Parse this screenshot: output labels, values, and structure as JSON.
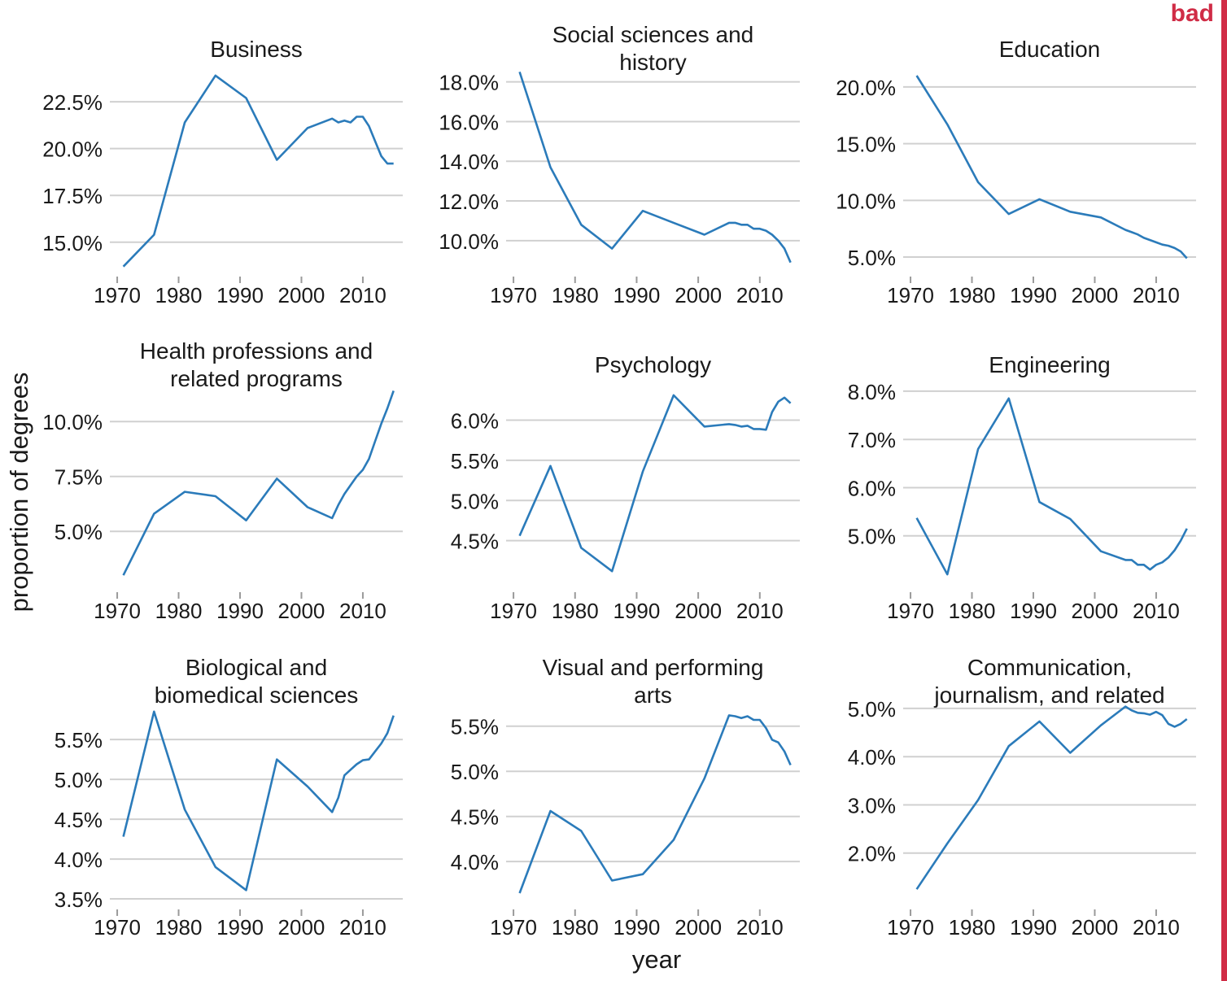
{
  "badge": {
    "text": "bad",
    "color": "#d02c46"
  },
  "xlabel": "year",
  "ylabel": "proportion of degrees",
  "line_color": "#2b7bba",
  "grid_color": "#d0d0d0",
  "chart_data": [
    {
      "type": "line",
      "title": "Business",
      "xticks": [
        1970,
        1980,
        1990,
        2000,
        2010
      ],
      "yticks": [
        "15.0%",
        "17.5%",
        "20.0%",
        "22.5%"
      ],
      "ylim": [
        13.6,
        24.2
      ],
      "series": [
        {
          "x": [
            1971,
            1976,
            1981,
            1986,
            1991,
            1996,
            2001,
            2005,
            2006,
            2007,
            2008,
            2009,
            2010,
            2011,
            2012,
            2013,
            2014,
            2015
          ],
          "y": [
            13.7,
            15.4,
            21.4,
            23.9,
            22.7,
            19.4,
            21.1,
            21.6,
            21.4,
            21.5,
            21.4,
            21.7,
            21.7,
            21.2,
            20.4,
            19.6,
            19.2,
            19.2
          ]
        }
      ]
    },
    {
      "type": "line",
      "title": "Social sciences and history",
      "xticks": [
        1970,
        1980,
        1990,
        2000,
        2010
      ],
      "yticks": [
        "10.0%",
        "12.0%",
        "14.0%",
        "16.0%",
        "18.0%"
      ],
      "ylim": [
        8.6,
        18.6
      ],
      "series": [
        {
          "x": [
            1971,
            1976,
            1981,
            1986,
            1991,
            1996,
            2001,
            2005,
            2006,
            2007,
            2008,
            2009,
            2010,
            2011,
            2012,
            2013,
            2014,
            2015
          ],
          "y": [
            18.5,
            13.7,
            10.8,
            9.6,
            11.5,
            10.9,
            10.3,
            10.9,
            10.9,
            10.8,
            10.8,
            10.6,
            10.6,
            10.5,
            10.3,
            10.0,
            9.6,
            8.9
          ]
        }
      ]
    },
    {
      "type": "line",
      "title": "Education",
      "xticks": [
        1970,
        1980,
        1990,
        2000,
        2010
      ],
      "yticks": [
        "5.0%",
        "10.0%",
        "15.0%",
        "20.0%"
      ],
      "ylim": [
        4.0,
        21.5
      ],
      "series": [
        {
          "x": [
            1971,
            1976,
            1981,
            1986,
            1991,
            1996,
            2001,
            2005,
            2006,
            2007,
            2008,
            2009,
            2010,
            2011,
            2012,
            2013,
            2014,
            2015
          ],
          "y": [
            21.0,
            16.7,
            11.6,
            8.8,
            10.1,
            9.0,
            8.5,
            7.4,
            7.2,
            7.0,
            6.7,
            6.5,
            6.3,
            6.1,
            6.0,
            5.8,
            5.5,
            4.9
          ]
        }
      ]
    },
    {
      "type": "line",
      "title": "Health professions and related programs",
      "xticks": [
        1970,
        1980,
        1990,
        2000,
        2010
      ],
      "yticks": [
        "5.0%",
        "7.5%",
        "10.0%"
      ],
      "ylim": [
        2.6,
        11.6
      ],
      "series": [
        {
          "x": [
            1971,
            1976,
            1981,
            1986,
            1991,
            1996,
            2001,
            2005,
            2006,
            2007,
            2008,
            2009,
            2010,
            2011,
            2012,
            2013,
            2014,
            2015
          ],
          "y": [
            3.0,
            5.8,
            6.8,
            6.6,
            5.5,
            7.4,
            6.1,
            5.6,
            6.2,
            6.7,
            7.1,
            7.5,
            7.8,
            8.3,
            9.1,
            9.9,
            10.6,
            11.4
          ]
        }
      ]
    },
    {
      "type": "line",
      "title": "Psychology",
      "xticks": [
        1970,
        1980,
        1990,
        2000,
        2010
      ],
      "yticks": [
        "4.5%",
        "5.0%",
        "5.5%",
        "6.0%"
      ],
      "ylim": [
        3.96,
        6.42
      ],
      "series": [
        {
          "x": [
            1971,
            1976,
            1981,
            1986,
            1991,
            1996,
            2001,
            2005,
            2006,
            2007,
            2008,
            2009,
            2010,
            2011,
            2012,
            2013,
            2014,
            2015
          ],
          "y": [
            4.56,
            5.43,
            4.41,
            4.12,
            5.36,
            6.31,
            5.92,
            5.95,
            5.94,
            5.92,
            5.93,
            5.89,
            5.89,
            5.88,
            6.1,
            6.23,
            6.28,
            6.21
          ]
        }
      ]
    },
    {
      "type": "line",
      "title": "Engineering",
      "xticks": [
        1970,
        1980,
        1990,
        2000,
        2010
      ],
      "yticks": [
        "5.0%",
        "6.0%",
        "7.0%",
        "8.0%"
      ],
      "ylim": [
        4.0,
        8.1
      ],
      "series": [
        {
          "x": [
            1971,
            1976,
            1981,
            1986,
            1991,
            1996,
            2001,
            2005,
            2006,
            2007,
            2008,
            2009,
            2010,
            2011,
            2012,
            2013,
            2014,
            2015
          ],
          "y": [
            5.37,
            4.2,
            6.8,
            7.85,
            5.7,
            5.35,
            4.68,
            4.5,
            4.5,
            4.4,
            4.4,
            4.3,
            4.4,
            4.45,
            4.55,
            4.7,
            4.9,
            5.15
          ]
        }
      ]
    },
    {
      "type": "line",
      "title": "Biological and biomedical sciences",
      "xticks": [
        1970,
        1980,
        1990,
        2000,
        2010
      ],
      "yticks": [
        "3.5%",
        "4.0%",
        "4.5%",
        "5.0%",
        "5.5%"
      ],
      "ylim": [
        3.47,
        5.95
      ],
      "series": [
        {
          "x": [
            1971,
            1976,
            1981,
            1986,
            1991,
            1996,
            2001,
            2005,
            2006,
            2007,
            2008,
            2009,
            2010,
            2011,
            2012,
            2013,
            2014,
            2015
          ],
          "y": [
            4.28,
            5.85,
            4.62,
            3.9,
            3.61,
            5.25,
            4.91,
            4.59,
            4.77,
            5.05,
            5.12,
            5.19,
            5.24,
            5.25,
            5.35,
            5.45,
            5.58,
            5.8
          ]
        }
      ]
    },
    {
      "type": "line",
      "title": "Visual and performing arts",
      "xticks": [
        1970,
        1980,
        1990,
        2000,
        2010
      ],
      "yticks": [
        "4.0%",
        "4.5%",
        "5.0%",
        "5.5%"
      ],
      "ylim": [
        3.56,
        5.75
      ],
      "series": [
        {
          "x": [
            1971,
            1976,
            1981,
            1986,
            1991,
            1996,
            2001,
            2005,
            2006,
            2007,
            2008,
            2009,
            2010,
            2011,
            2012,
            2013,
            2014,
            2015
          ],
          "y": [
            3.65,
            4.56,
            4.34,
            3.79,
            3.86,
            4.24,
            4.92,
            5.62,
            5.61,
            5.59,
            5.61,
            5.57,
            5.57,
            5.48,
            5.35,
            5.32,
            5.22,
            5.07
          ]
        }
      ]
    },
    {
      "type": "line",
      "title": "Communication, journalism, and related",
      "xticks": [
        1970,
        1980,
        1990,
        2000,
        2010
      ],
      "yticks": [
        "2.0%",
        "3.0%",
        "4.0%",
        "5.0%"
      ],
      "ylim": [
        1.0,
        5.1
      ],
      "series": [
        {
          "x": [
            1971,
            1976,
            1981,
            1986,
            1991,
            1996,
            2001,
            2005,
            2006,
            2007,
            2008,
            2009,
            2010,
            2011,
            2012,
            2013,
            2014,
            2015
          ],
          "y": [
            1.25,
            2.2,
            3.1,
            4.22,
            4.73,
            4.08,
            4.65,
            5.04,
            4.96,
            4.91,
            4.9,
            4.87,
            4.93,
            4.86,
            4.68,
            4.62,
            4.68,
            4.78
          ]
        }
      ]
    }
  ]
}
